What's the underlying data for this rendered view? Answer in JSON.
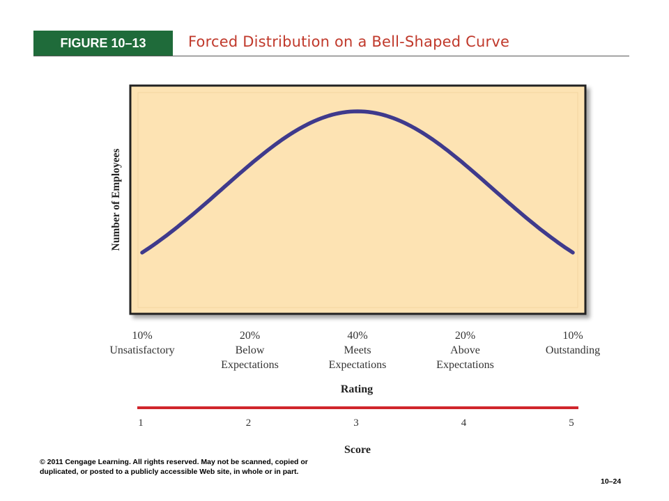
{
  "header": {
    "figure_label": "FIGURE 10–13",
    "title": "Forced Distribution on a Bell-Shaped Curve"
  },
  "colors": {
    "badge_bg": "#1f6b3a",
    "title_text": "#c0392b",
    "plot_bg": "#fde3b3",
    "curve": "#3f3a8c",
    "score_line": "#d0262c"
  },
  "chart_data": {
    "type": "line",
    "ylabel": "Number of Employees",
    "xlabel": "Rating",
    "score_label": "Score",
    "categories": [
      {
        "percent": "10%",
        "line1": "Unsatisfactory",
        "line2": ""
      },
      {
        "percent": "20%",
        "line1": "Below",
        "line2": "Expectations"
      },
      {
        "percent": "40%",
        "line1": "Meets",
        "line2": "Expectations"
      },
      {
        "percent": "20%",
        "line1": "Above",
        "line2": "Expectations"
      },
      {
        "percent": "10%",
        "line1": "Outstanding",
        "line2": ""
      }
    ],
    "scores": [
      "1",
      "2",
      "3",
      "4",
      "5"
    ],
    "distribution_percent": [
      10,
      20,
      40,
      20,
      10
    ],
    "curve": {
      "x_range": [
        1,
        5
      ],
      "peak_x": 3,
      "shape": "bell",
      "relative_height_at_ends": 0.28
    },
    "grid": false,
    "legend": "none"
  },
  "footer": {
    "copyright": "© 2011 Cengage Learning. All rights reserved. May not be scanned, copied or duplicated, or posted to a publicly accessible Web site, in whole or in part.",
    "page_number": "10–24"
  }
}
